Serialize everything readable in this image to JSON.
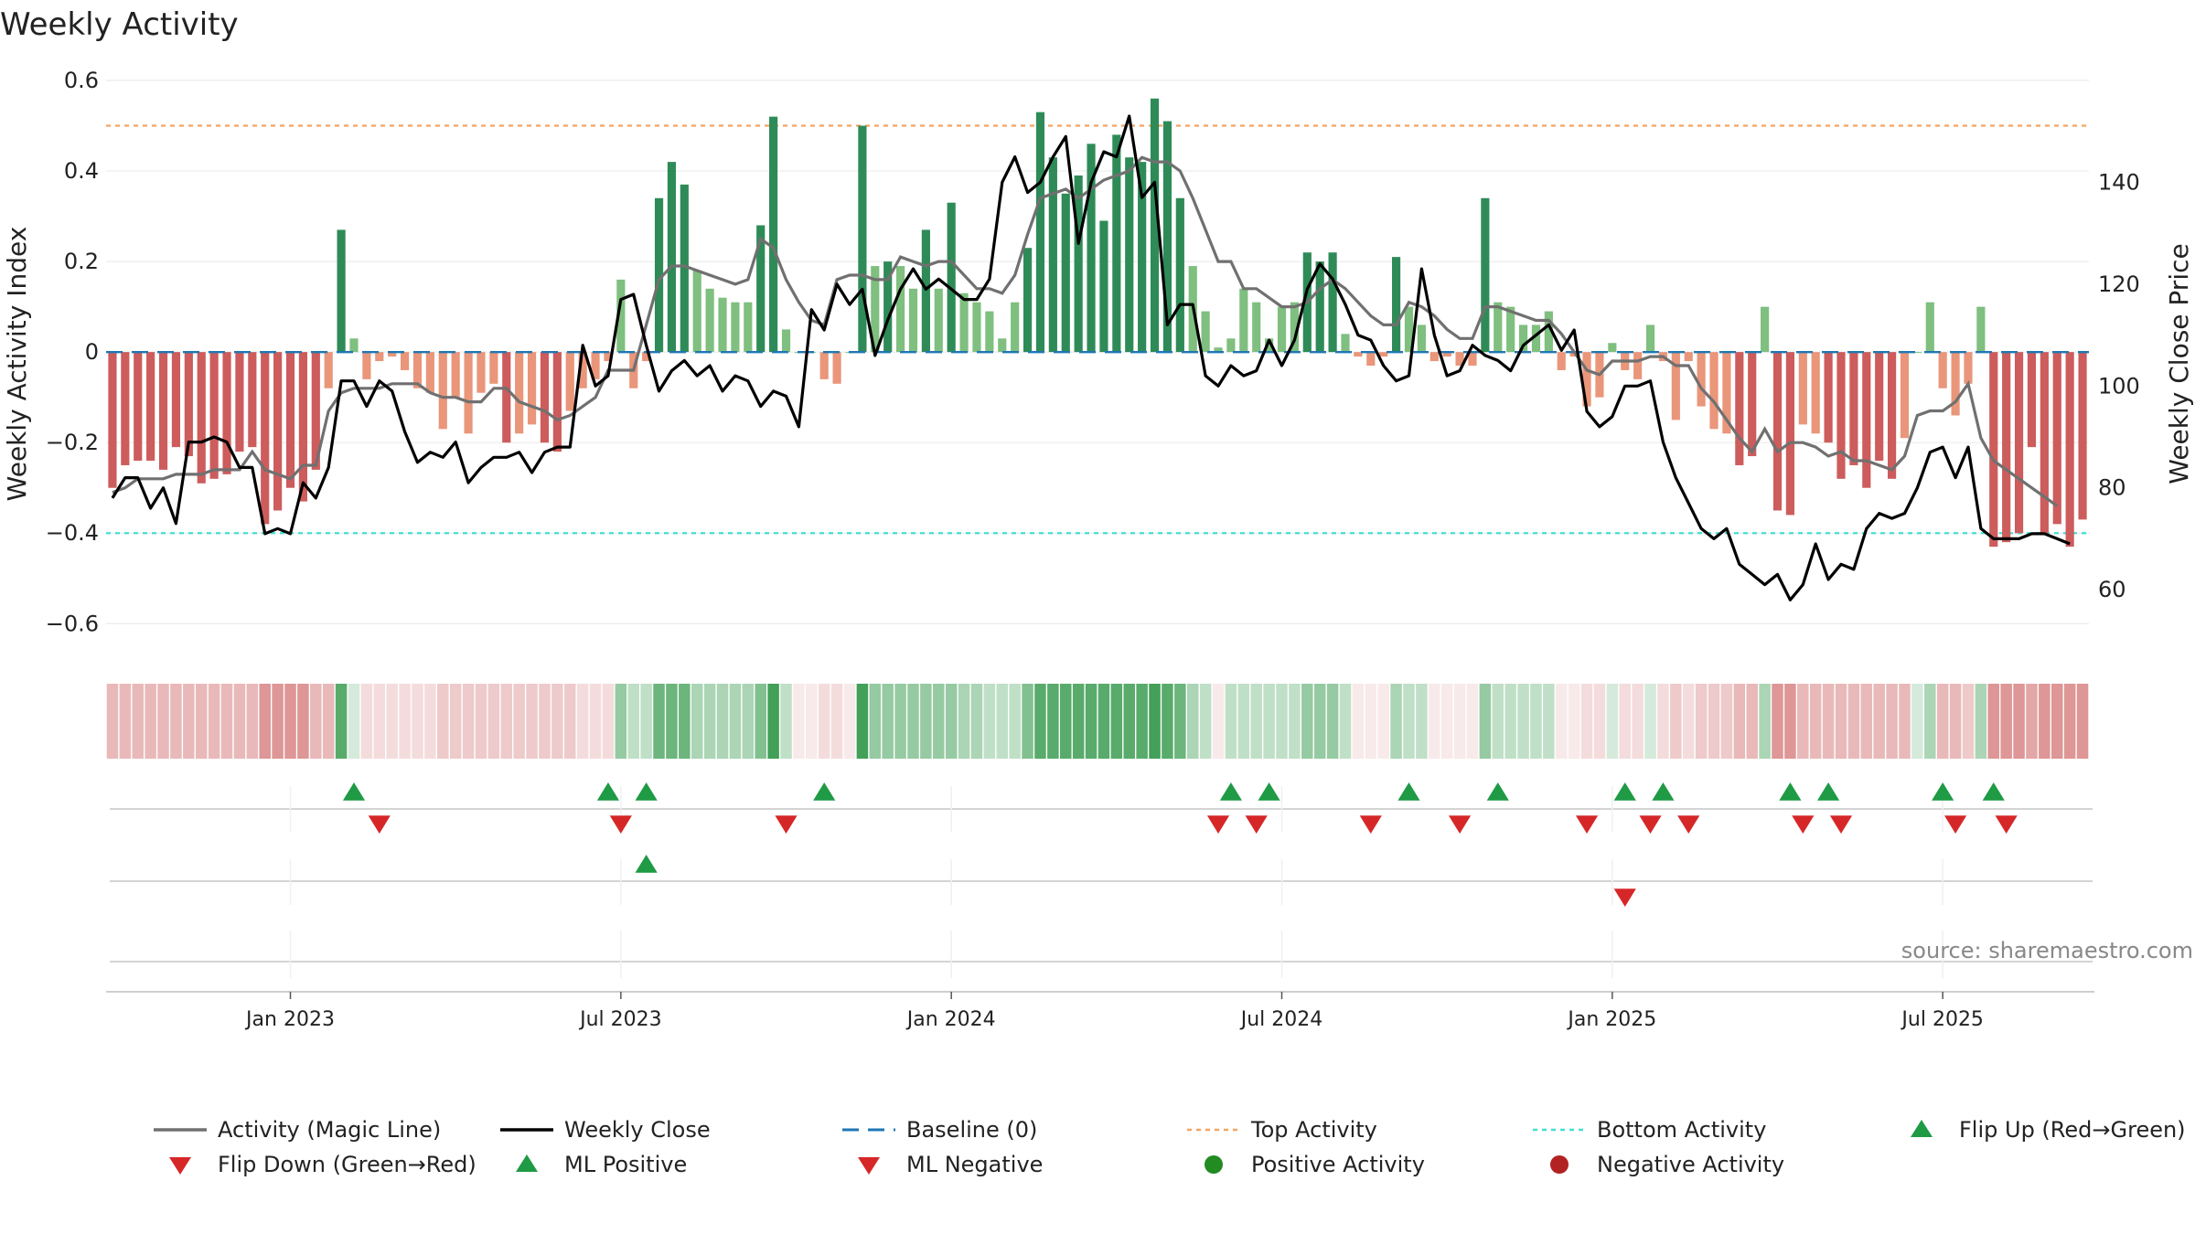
{
  "chart_data": {
    "type": "bar",
    "title": "Weekly Activity",
    "ylabel": "Weekly Activity Index",
    "y2label": "Weekly Close Price",
    "ylim": [
      -0.66,
      0.6
    ],
    "y2lim": [
      48,
      160
    ],
    "yticks": [
      {
        "v": 0.6,
        "label": "0.6"
      },
      {
        "v": 0.4,
        "label": "0.4"
      },
      {
        "v": 0.2,
        "label": "0.2"
      },
      {
        "v": 0,
        "label": "0"
      },
      {
        "v": -0.2,
        "label": "−0.2"
      },
      {
        "v": -0.4,
        "label": "−0.4"
      },
      {
        "v": -0.6,
        "label": "−0.6"
      }
    ],
    "y2ticks": [
      {
        "v": 140,
        "label": "140"
      },
      {
        "v": 120,
        "label": "120"
      },
      {
        "v": 100,
        "label": "100"
      },
      {
        "v": 80,
        "label": "80"
      },
      {
        "v": 60,
        "label": "60"
      }
    ],
    "xticks": [
      {
        "week": 14.5,
        "label": "Jan 2023"
      },
      {
        "week": 40.5,
        "label": "Jul 2023"
      },
      {
        "week": 66.5,
        "label": "Jan 2024"
      },
      {
        "week": 92.5,
        "label": "Jul 2024"
      },
      {
        "week": 118.5,
        "label": "Jan 2025"
      },
      {
        "week": 144.5,
        "label": "Jul 2025"
      }
    ],
    "top_activity": 0.5,
    "bottom_activity": -0.4,
    "activity": [
      -0.3,
      -0.25,
      -0.24,
      -0.24,
      -0.26,
      -0.21,
      -0.23,
      -0.29,
      -0.28,
      -0.27,
      -0.22,
      -0.21,
      -0.38,
      -0.35,
      -0.3,
      -0.33,
      -0.26,
      -0.08,
      0.27,
      0.03,
      -0.06,
      -0.02,
      -0.01,
      -0.04,
      -0.08,
      -0.09,
      -0.17,
      -0.1,
      -0.18,
      -0.09,
      -0.07,
      -0.2,
      -0.18,
      -0.16,
      -0.2,
      -0.22,
      -0.13,
      -0.08,
      -0.06,
      -0.02,
      0.16,
      -0.08,
      -0.02,
      0.34,
      0.42,
      0.37,
      0.18,
      0.14,
      0.12,
      0.11,
      0.11,
      0.28,
      0.52,
      0.05,
      0.0,
      0.0,
      -0.06,
      -0.07,
      0.0,
      0.5,
      0.19,
      0.2,
      0.19,
      0.14,
      0.27,
      0.14,
      0.33,
      0.13,
      0.11,
      0.09,
      0.03,
      0.11,
      0.23,
      0.53,
      0.43,
      0.35,
      0.39,
      0.46,
      0.29,
      0.48,
      0.43,
      0.42,
      0.56,
      0.51,
      0.34,
      0.19,
      0.09,
      0.01,
      0.03,
      0.14,
      0.11,
      0.03,
      0.1,
      0.11,
      0.22,
      0.2,
      0.22,
      0.04,
      -0.01,
      -0.03,
      -0.01,
      0.21,
      0.1,
      0.06,
      -0.02,
      -0.01,
      -0.03,
      -0.03,
      0.34,
      0.11,
      0.1,
      0.06,
      0.06,
      0.09,
      -0.04,
      -0.01,
      -0.12,
      -0.1,
      0.02,
      -0.04,
      -0.06,
      0.06,
      -0.02,
      -0.15,
      -0.02,
      -0.12,
      -0.17,
      -0.18,
      -0.25,
      -0.23,
      0.1,
      -0.35,
      -0.36,
      -0.16,
      -0.18,
      -0.2,
      -0.28,
      -0.25,
      -0.3,
      -0.24,
      -0.28,
      -0.19,
      0.0,
      0.11,
      -0.08,
      -0.14,
      -0.07,
      0.1,
      -0.43,
      -0.42,
      -0.4,
      -0.21,
      -0.4,
      -0.38,
      -0.43,
      -0.37
    ],
    "magic_line": [
      -0.31,
      -0.3,
      -0.28,
      -0.28,
      -0.28,
      -0.27,
      -0.27,
      -0.27,
      -0.26,
      -0.26,
      -0.26,
      -0.22,
      -0.26,
      -0.27,
      -0.28,
      -0.25,
      -0.25,
      -0.13,
      -0.09,
      -0.08,
      -0.08,
      -0.08,
      -0.07,
      -0.07,
      -0.07,
      -0.09,
      -0.1,
      -0.1,
      -0.11,
      -0.11,
      -0.08,
      -0.08,
      -0.11,
      -0.12,
      -0.13,
      -0.15,
      -0.14,
      -0.12,
      -0.1,
      -0.04,
      -0.04,
      -0.04,
      0.06,
      0.16,
      0.19,
      0.19,
      0.18,
      0.17,
      0.16,
      0.15,
      0.16,
      0.25,
      0.23,
      0.16,
      0.11,
      0.07,
      0.06,
      0.16,
      0.17,
      0.17,
      0.16,
      0.16,
      0.21,
      0.2,
      0.19,
      0.2,
      0.2,
      0.17,
      0.14,
      0.14,
      0.13,
      0.17,
      0.26,
      0.34,
      0.35,
      0.36,
      0.34,
      0.36,
      0.38,
      0.39,
      0.4,
      0.43,
      0.42,
      0.42,
      0.4,
      0.34,
      0.27,
      0.2,
      0.2,
      0.14,
      0.14,
      0.12,
      0.1,
      0.1,
      0.11,
      0.14,
      0.16,
      0.14,
      0.11,
      0.08,
      0.06,
      0.06,
      0.11,
      0.1,
      0.08,
      0.05,
      0.03,
      0.03,
      0.1,
      0.1,
      0.09,
      0.08,
      0.07,
      0.07,
      0.04,
      0.0,
      -0.04,
      -0.05,
      -0.02,
      -0.02,
      -0.02,
      -0.01,
      -0.01,
      -0.03,
      -0.03,
      -0.08,
      -0.11,
      -0.15,
      -0.19,
      -0.22,
      -0.17,
      -0.22,
      -0.2,
      -0.2,
      -0.21,
      -0.23,
      -0.22,
      -0.24,
      -0.24,
      -0.25,
      -0.26,
      -0.23,
      -0.14,
      -0.13,
      -0.13,
      -0.11,
      -0.07,
      -0.19,
      -0.24,
      -0.26,
      -0.28,
      -0.3,
      -0.32,
      -0.34
    ],
    "weekly_close": [
      78,
      82,
      82,
      76,
      80,
      73,
      89,
      89,
      90,
      89,
      84,
      84,
      71,
      72,
      71,
      81,
      78,
      84,
      101,
      101,
      96,
      101,
      99,
      91,
      85,
      87,
      86,
      89,
      81,
      84,
      86,
      86,
      87,
      83,
      87,
      88,
      88,
      108,
      100,
      102,
      117,
      118,
      108,
      99,
      103,
      105,
      102,
      104,
      99,
      102,
      101,
      96,
      99,
      98,
      92,
      115,
      111,
      120,
      116,
      119,
      106,
      113,
      119,
      123,
      119,
      121,
      119,
      117,
      117,
      121,
      140,
      145,
      138,
      140,
      145,
      149,
      128,
      140,
      146,
      145,
      153,
      137,
      140,
      112,
      116,
      116,
      102,
      100,
      104,
      102,
      103,
      109,
      104,
      109,
      119,
      124,
      121,
      116,
      110,
      109,
      104,
      101,
      102,
      123,
      110,
      102,
      103,
      108,
      106,
      105,
      103,
      108,
      110,
      112,
      107,
      111,
      95,
      92,
      94,
      100,
      100,
      101,
      89,
      82,
      77,
      72,
      70,
      72,
      65,
      63,
      61,
      63,
      58,
      61,
      69,
      62,
      65,
      64,
      72,
      75,
      74,
      75,
      80,
      87,
      88,
      82,
      88,
      72,
      70,
      70,
      70,
      71,
      71,
      70,
      69
    ],
    "heat_strip_levels": [
      -0.4,
      -0.4,
      -0.4,
      -0.4,
      -0.4,
      -0.4,
      -0.4,
      -0.4,
      -0.4,
      -0.4,
      -0.4,
      -0.4,
      -0.6,
      -0.6,
      -0.6,
      -0.6,
      -0.4,
      -0.4,
      0.8,
      0.2,
      -0.2,
      -0.2,
      -0.2,
      -0.2,
      -0.2,
      -0.2,
      -0.3,
      -0.3,
      -0.3,
      -0.3,
      -0.3,
      -0.3,
      -0.3,
      -0.3,
      -0.3,
      -0.3,
      -0.3,
      -0.2,
      -0.2,
      -0.2,
      0.5,
      0.3,
      0.3,
      0.7,
      0.7,
      0.7,
      0.4,
      0.4,
      0.4,
      0.4,
      0.4,
      0.6,
      0.9,
      0.3,
      -0.1,
      -0.1,
      -0.2,
      -0.2,
      -0.1,
      0.9,
      0.5,
      0.5,
      0.5,
      0.5,
      0.5,
      0.5,
      0.5,
      0.4,
      0.4,
      0.3,
      0.3,
      0.3,
      0.6,
      0.8,
      0.8,
      0.8,
      0.8,
      0.8,
      0.8,
      0.8,
      0.8,
      0.8,
      0.9,
      0.8,
      0.7,
      0.4,
      0.3,
      -0.1,
      0.3,
      0.3,
      0.3,
      0.3,
      0.3,
      0.3,
      0.5,
      0.5,
      0.5,
      0.3,
      -0.1,
      -0.1,
      -0.1,
      0.4,
      0.3,
      0.3,
      -0.1,
      -0.1,
      -0.1,
      -0.1,
      0.5,
      0.3,
      0.3,
      0.3,
      0.3,
      0.3,
      -0.1,
      -0.1,
      -0.2,
      -0.2,
      0.2,
      -0.2,
      -0.2,
      0.2,
      -0.2,
      -0.3,
      -0.2,
      -0.3,
      -0.3,
      -0.3,
      -0.4,
      -0.4,
      0.4,
      -0.6,
      -0.6,
      -0.4,
      -0.4,
      -0.4,
      -0.4,
      -0.4,
      -0.4,
      -0.4,
      -0.4,
      -0.4,
      0.2,
      0.4,
      -0.4,
      -0.4,
      -0.3,
      0.4,
      -0.6,
      -0.6,
      -0.6,
      -0.5,
      -0.6,
      -0.6,
      -0.6,
      -0.6
    ],
    "flip_up_weeks": [
      19,
      39,
      42,
      56,
      88,
      91,
      102,
      109,
      119,
      122,
      132,
      135,
      144,
      148
    ],
    "flip_down_weeks": [
      21,
      40,
      53,
      87,
      90,
      99,
      106,
      116,
      121,
      124,
      133,
      136,
      145,
      149
    ],
    "ml_positive_weeks": [
      42
    ],
    "ml_negative_weeks": [
      119
    ],
    "legend": [
      "Activity (Magic Line)",
      "Weekly Close",
      "Baseline (0)",
      "Top Activity",
      "Bottom Activity",
      "Flip Up (Red→Green)",
      "Flip Down (Green→Red)",
      "ML Positive",
      "ML Negative",
      "Positive Activity",
      "Negative Activity"
    ],
    "source": "source: sharemaestro.com",
    "colors": {
      "pos_strong": "#2e8b57",
      "pos_light": "#7fbf7f",
      "neg_strong": "#cd5c5c",
      "neg_light": "#e9967a",
      "magic_line": "#707070",
      "close": "#000000",
      "baseline": "#1f77b4",
      "top": "#f4a460",
      "bottom": "#40e0d0",
      "flip_up": "#1f9a45",
      "flip_down": "#d62728",
      "pos_dot": "#228b22",
      "neg_dot": "#b22222"
    }
  }
}
